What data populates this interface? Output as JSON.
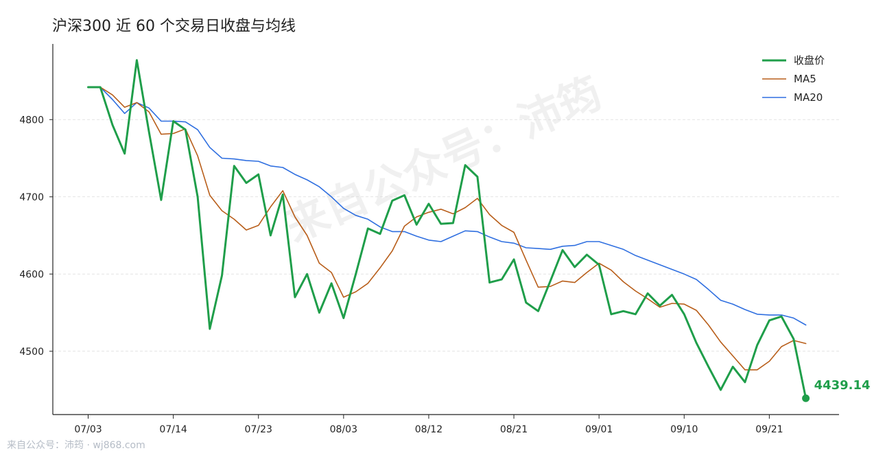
{
  "title": "沪深300 近 60 个交易日收盘与均线",
  "watermark": "来自公众号：沛筠",
  "footer": "来自公众号：沛筠 · wj868.com",
  "colors": {
    "close": "#1f9e4a",
    "ma5": "#b85e1a",
    "ma20": "#2f6fe0"
  },
  "chart_data": {
    "type": "line",
    "title": "沪深300 近 60 个交易日收盘与均线",
    "xlabel": "",
    "ylabel": "",
    "ylim": [
      4418,
      4898
    ],
    "yticks": [
      "4500",
      "4600",
      "4700",
      "4800"
    ],
    "grid": "horizontal dashed",
    "legend_position": "top-right",
    "x_tick_labels": [
      {
        "label": "07/03",
        "index": 0
      },
      {
        "label": "07/14",
        "index": 7
      },
      {
        "label": "07/23",
        "index": 14
      },
      {
        "label": "08/03",
        "index": 21
      },
      {
        "label": "08/12",
        "index": 28
      },
      {
        "label": "08/21",
        "index": 35
      },
      {
        "label": "09/01",
        "index": 42
      },
      {
        "label": "09/10",
        "index": 49
      },
      {
        "label": "09/21",
        "index": 56
      }
    ],
    "series": [
      {
        "name": "收盘价",
        "color": "#1f9e4a",
        "values": [
          4842,
          4842,
          4793,
          4756,
          4877,
          4784,
          4696,
          4798,
          4787,
          4700,
          4529,
          4598,
          4740,
          4718,
          4729,
          4650,
          4703,
          4570,
          4600,
          4550,
          4588,
          4543,
          4600,
          4659,
          4652,
          4695,
          4702,
          4664,
          4691,
          4665,
          4666,
          4741,
          4726,
          4589,
          4593,
          4619,
          4563,
          4552,
          4591,
          4631,
          4609,
          4625,
          4612,
          4548,
          4552,
          4548,
          4575,
          4559,
          4573,
          4548,
          4511,
          4480,
          4450,
          4480,
          4460,
          4508,
          4540,
          4545,
          4516,
          4439.14
        ]
      },
      {
        "name": "MA5",
        "color": "#b85e1a",
        "values": [
          4842,
          4842,
          4832,
          4816,
          4822,
          4810,
          4781,
          4782,
          4788,
          4753,
          4702,
          4682,
          4671,
          4657,
          4663,
          4687,
          4708,
          4674,
          4650,
          4614,
          4602,
          4570,
          4577,
          4588,
          4608,
          4630,
          4662,
          4674,
          4680,
          4684,
          4678,
          4686,
          4698,
          4677,
          4663,
          4654,
          4618,
          4583,
          4584,
          4591,
          4589,
          4602,
          4614,
          4605,
          4590,
          4578,
          4568,
          4557,
          4562,
          4561,
          4553,
          4534,
          4512,
          4494,
          4476,
          4476,
          4487,
          4506,
          4514,
          4510
        ]
      },
      {
        "name": "MA20",
        "color": "#2f6fe0",
        "values": [
          4842,
          4842,
          4826,
          4808,
          4822,
          4815,
          4798,
          4798,
          4797,
          4787,
          4764,
          4750,
          4749,
          4747,
          4746,
          4740,
          4738,
          4729,
          4722,
          4713,
          4700,
          4685,
          4676,
          4671,
          4661,
          4655,
          4655,
          4649,
          4644,
          4642,
          4649,
          4656,
          4655,
          4648,
          4642,
          4640,
          4634,
          4633,
          4632,
          4636,
          4637,
          4642,
          4642,
          4637,
          4632,
          4624,
          4618,
          4612,
          4606,
          4600,
          4593,
          4580,
          4566,
          4561,
          4554,
          4548,
          4547,
          4547,
          4543,
          4534
        ]
      }
    ],
    "end_label": "4439.14"
  }
}
